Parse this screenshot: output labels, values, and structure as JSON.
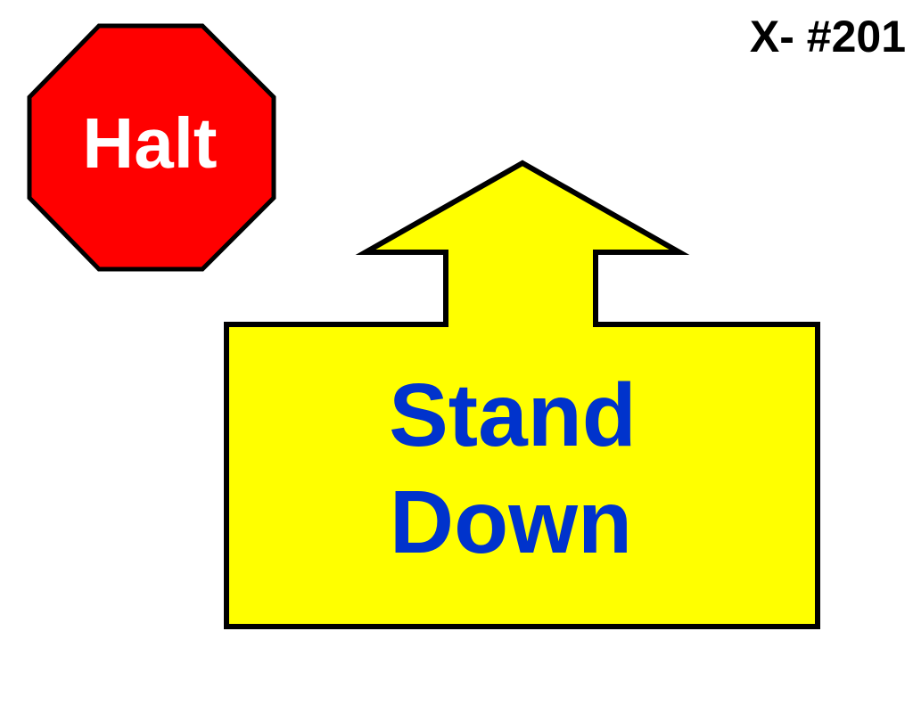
{
  "slide_id": "X- #201",
  "stop_sign": {
    "label": "Halt",
    "fill_color": "#ff0000",
    "text_color": "#ffffff",
    "border_color": "#000000",
    "icon": "octagon-stop-sign-icon"
  },
  "arrow_sign": {
    "line1": "Stand",
    "line2": "Down",
    "fill_color": "#ffff00",
    "text_color": "#0033cc",
    "border_color": "#000000",
    "icon": "up-arrow-icon"
  }
}
